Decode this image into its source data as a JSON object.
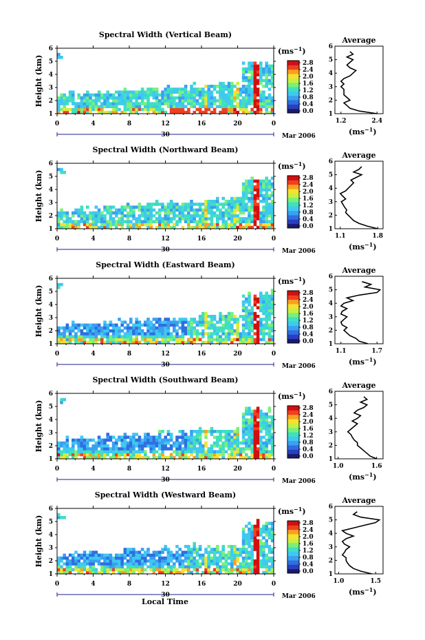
{
  "figure": {
    "date_label": "Mar 2006",
    "day_label": "30",
    "xlabel": "Local Time",
    "ylabel": "Height (km)",
    "colorbar_unit": "(ms",
    "colorbar_unit_exp": "−1",
    "profile_title": "Average",
    "profile_xunit": "(ms",
    "profile_xunit_exp": "−1"
  },
  "colors": {
    "colormap": [
      "#1a1a6e",
      "#2a3fbf",
      "#2f6fe0",
      "#3aa0f0",
      "#40c8f0",
      "#3fe0c0",
      "#7af07a",
      "#c8f040",
      "#f8e030",
      "#f8a020",
      "#f04020",
      "#d01010"
    ]
  },
  "chart_data": [
    {
      "type": "heatmap",
      "title": "Spectral Width (Vertical Beam)",
      "x_ticks": [
        "0",
        "4",
        "8",
        "12",
        "16",
        "20",
        "0"
      ],
      "xlim": [
        0,
        24
      ],
      "y_ticks": [
        "1",
        "2",
        "3",
        "4",
        "5",
        "6"
      ],
      "ylim": [
        1,
        6
      ],
      "colorbar_ticks": [
        "0.0",
        "0.4",
        "0.8",
        "1.2",
        "1.6",
        "2.0",
        "2.4",
        "2.8"
      ],
      "colorbar_range": [
        0.0,
        2.8
      ],
      "profile": {
        "title": "Average",
        "x_ticks": [
          "1.2",
          "2.4"
        ],
        "xlim": [
          1.0,
          2.6
        ],
        "heights": [
          1.0,
          1.2,
          1.4,
          1.6,
          1.8,
          2.0,
          2.2,
          2.4,
          2.6,
          2.8,
          3.0,
          3.2,
          3.4,
          3.6,
          3.8,
          4.0,
          4.2,
          4.4,
          4.6,
          4.8,
          5.0,
          5.2,
          5.4,
          5.6
        ],
        "values": [
          2.4,
          1.8,
          1.5,
          1.4,
          1.3,
          1.5,
          1.4,
          1.3,
          1.3,
          1.3,
          1.2,
          1.3,
          1.2,
          1.3,
          1.5,
          1.6,
          1.7,
          1.5,
          1.4,
          1.5,
          1.6,
          1.4,
          1.6,
          1.5
        ]
      }
    },
    {
      "type": "heatmap",
      "title": "Spectral Width (Northward Beam)",
      "x_ticks": [
        "0",
        "4",
        "8",
        "12",
        "16",
        "20",
        "0"
      ],
      "xlim": [
        0,
        24
      ],
      "y_ticks": [
        "1",
        "2",
        "3",
        "4",
        "5",
        "6"
      ],
      "ylim": [
        1,
        6
      ],
      "colorbar_ticks": [
        "0.0",
        "0.4",
        "0.8",
        "1.2",
        "1.6",
        "2.0",
        "2.4",
        "2.8"
      ],
      "colorbar_range": [
        0.0,
        2.8
      ],
      "profile": {
        "title": "Average",
        "x_ticks": [
          "1.1",
          "1.8"
        ],
        "xlim": [
          1.0,
          1.9
        ],
        "heights": [
          1.0,
          1.2,
          1.4,
          1.6,
          1.8,
          2.0,
          2.2,
          2.4,
          2.6,
          2.8,
          3.0,
          3.2,
          3.4,
          3.6,
          3.8,
          4.0,
          4.2,
          4.4,
          4.6,
          4.8,
          5.0,
          5.2,
          5.4,
          5.6
        ],
        "values": [
          1.8,
          1.6,
          1.45,
          1.35,
          1.3,
          1.25,
          1.2,
          1.22,
          1.18,
          1.15,
          1.12,
          1.2,
          1.15,
          1.1,
          1.2,
          1.25,
          1.3,
          1.35,
          1.3,
          1.4,
          1.5,
          1.35,
          1.45,
          1.5
        ]
      }
    },
    {
      "type": "heatmap",
      "title": "Spectral Width (Eastward Beam)",
      "x_ticks": [
        "0",
        "4",
        "8",
        "12",
        "16",
        "20",
        "0"
      ],
      "xlim": [
        0,
        24
      ],
      "y_ticks": [
        "1",
        "2",
        "3",
        "4",
        "5",
        "6"
      ],
      "ylim": [
        1,
        6
      ],
      "colorbar_ticks": [
        "0.0",
        "0.4",
        "0.8",
        "1.2",
        "1.6",
        "2.0",
        "2.4",
        "2.8"
      ],
      "colorbar_range": [
        0.0,
        2.8
      ],
      "profile": {
        "title": "Average",
        "x_ticks": [
          "1.1",
          "1.7"
        ],
        "xlim": [
          1.0,
          1.8
        ],
        "heights": [
          1.0,
          1.2,
          1.4,
          1.6,
          1.8,
          2.0,
          2.2,
          2.4,
          2.6,
          2.8,
          3.0,
          3.2,
          3.4,
          3.6,
          3.8,
          4.0,
          4.2,
          4.4,
          4.6,
          4.8,
          5.0,
          5.2,
          5.4,
          5.6
        ],
        "values": [
          1.55,
          1.4,
          1.35,
          1.25,
          1.2,
          1.15,
          1.2,
          1.12,
          1.1,
          1.15,
          1.2,
          1.1,
          1.12,
          1.2,
          1.1,
          1.15,
          1.3,
          1.2,
          1.4,
          1.7,
          1.75,
          1.5,
          1.6,
          1.45
        ]
      }
    },
    {
      "type": "heatmap",
      "title": "Spectral Width (Southward Beam)",
      "x_ticks": [
        "0",
        "4",
        "8",
        "12",
        "16",
        "20",
        "0"
      ],
      "xlim": [
        0,
        24
      ],
      "y_ticks": [
        "1",
        "2",
        "3",
        "4",
        "5",
        "6"
      ],
      "ylim": [
        1,
        6
      ],
      "colorbar_ticks": [
        "0.0",
        "0.4",
        "0.8",
        "1.2",
        "1.6",
        "2.0",
        "2.4",
        "2.8"
      ],
      "colorbar_range": [
        0.0,
        2.8
      ],
      "profile": {
        "title": "Average",
        "x_ticks": [
          "1.0",
          "1.6"
        ],
        "xlim": [
          0.95,
          1.7
        ],
        "heights": [
          1.0,
          1.2,
          1.4,
          1.6,
          1.8,
          2.0,
          2.2,
          2.4,
          2.6,
          2.8,
          3.0,
          3.2,
          3.4,
          3.6,
          3.8,
          4.0,
          4.2,
          4.4,
          4.6,
          4.8,
          5.0,
          5.2,
          5.4,
          5.6
        ],
        "values": [
          1.6,
          1.5,
          1.45,
          1.4,
          1.35,
          1.3,
          1.3,
          1.25,
          1.22,
          1.2,
          1.15,
          1.2,
          1.25,
          1.3,
          1.22,
          1.3,
          1.35,
          1.25,
          1.3,
          1.4,
          1.45,
          1.35,
          1.45,
          1.4
        ]
      }
    },
    {
      "type": "heatmap",
      "title": "Spectral Width (Westward Beam)",
      "x_ticks": [
        "0",
        "4",
        "8",
        "12",
        "16",
        "20",
        "0"
      ],
      "xlim": [
        0,
        24
      ],
      "y_ticks": [
        "1",
        "2",
        "3",
        "4",
        "5",
        "6"
      ],
      "ylim": [
        1,
        6
      ],
      "colorbar_ticks": [
        "0.0",
        "0.4",
        "0.8",
        "1.2",
        "1.6",
        "2.0",
        "2.4",
        "2.8"
      ],
      "colorbar_range": [
        0.0,
        2.8
      ],
      "profile": {
        "title": "Average",
        "x_ticks": [
          "1.0",
          "1.5"
        ],
        "xlim": [
          0.95,
          1.6
        ],
        "heights": [
          1.0,
          1.2,
          1.4,
          1.6,
          1.8,
          2.0,
          2.2,
          2.4,
          2.6,
          2.8,
          3.0,
          3.2,
          3.4,
          3.6,
          3.8,
          4.0,
          4.2,
          4.4,
          4.6,
          4.8,
          5.0,
          5.2,
          5.4,
          5.6
        ],
        "values": [
          1.45,
          1.3,
          1.2,
          1.15,
          1.12,
          1.1,
          1.1,
          1.05,
          1.08,
          1.1,
          1.15,
          1.08,
          1.05,
          1.1,
          1.2,
          1.1,
          1.05,
          1.2,
          1.35,
          1.5,
          1.55,
          1.3,
          1.2,
          1.25
        ]
      }
    }
  ]
}
